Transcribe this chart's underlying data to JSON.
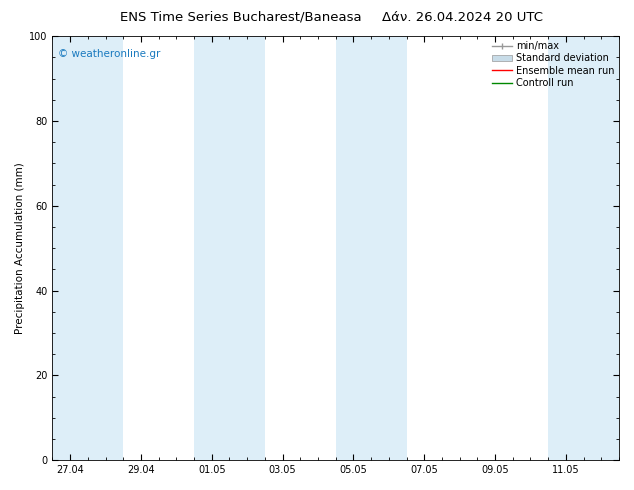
{
  "title_left": "ENS Time Series Bucharest/Baneasa",
  "title_right": "Δάν. 26.04.2024 20 UTC",
  "ylabel": "Precipitation Accumulation (mm)",
  "watermark": "© weatheronline.gr",
  "watermark_color": "#1a7abf",
  "ylim": [
    0,
    100
  ],
  "yticks": [
    0,
    20,
    40,
    60,
    80,
    100
  ],
  "xtick_labels": [
    "27.04",
    "29.04",
    "01.05",
    "03.05",
    "05.05",
    "07.05",
    "09.05",
    "11.05"
  ],
  "xtick_positions": [
    0,
    2,
    4,
    6,
    8,
    10,
    12,
    14
  ],
  "x_min": -0.5,
  "x_max": 15.5,
  "bg_color": "#ffffff",
  "band_color": "#ddeef8",
  "band_positions": [
    [
      -0.5,
      1.5
    ],
    [
      3.5,
      5.5
    ],
    [
      7.5,
      9.5
    ],
    [
      13.5,
      15.5
    ]
  ],
  "legend_entries": [
    {
      "label": "min/max",
      "color": "#999999",
      "lw": 1.0,
      "style": "errorbar"
    },
    {
      "label": "Standard deviation",
      "color": "#c8dce8",
      "lw": 4,
      "style": "band"
    },
    {
      "label": "Ensemble mean run",
      "color": "#ff0000",
      "lw": 1.0,
      "style": "line"
    },
    {
      "label": "Controll run",
      "color": "#008800",
      "lw": 1.0,
      "style": "line"
    }
  ],
  "title_fontsize": 9.5,
  "tick_fontsize": 7,
  "ylabel_fontsize": 7.5,
  "watermark_fontsize": 7.5,
  "legend_fontsize": 7,
  "fig_width": 6.34,
  "fig_height": 4.9,
  "dpi": 100
}
